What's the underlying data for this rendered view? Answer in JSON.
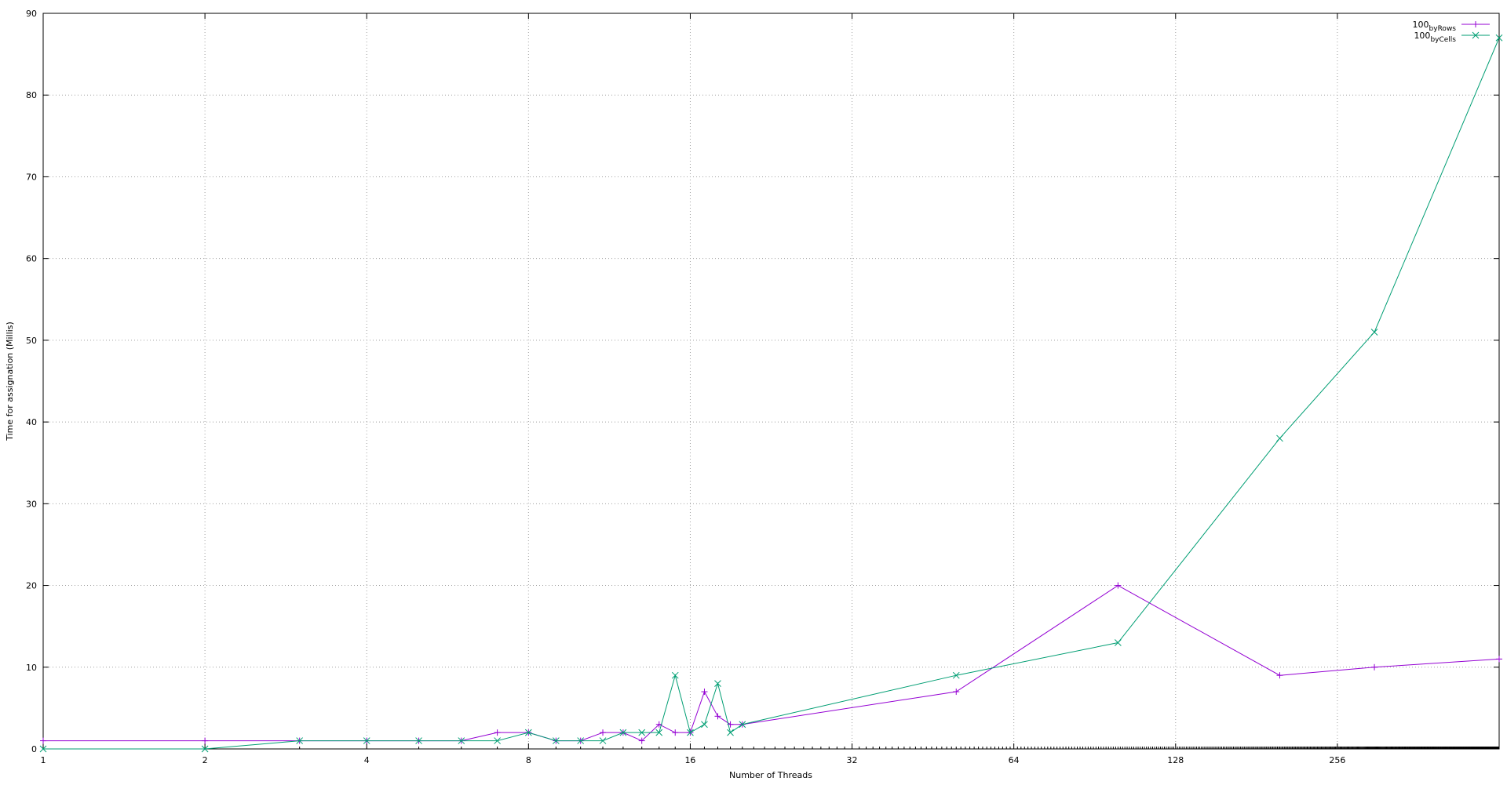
{
  "chart_data": {
    "type": "line",
    "xlabel": "Number of Threads",
    "ylabel": "Time for assignation (Millis)",
    "x_scale": "log2",
    "xlim": [
      1,
      512
    ],
    "ylim": [
      0,
      90
    ],
    "x_ticks": [
      1,
      2,
      4,
      8,
      16,
      32,
      64,
      128,
      256
    ],
    "y_ticks": [
      0,
      10,
      20,
      30,
      40,
      50,
      60,
      70,
      80,
      90
    ],
    "grid": true,
    "legend_position": "top-right",
    "series": [
      {
        "name_main": "100",
        "name_sub": "byRows",
        "color": "#9400d3",
        "marker": "plus",
        "points": [
          [
            1,
            1
          ],
          [
            2,
            1
          ],
          [
            3,
            1
          ],
          [
            4,
            1
          ],
          [
            5,
            1
          ],
          [
            6,
            1
          ],
          [
            7,
            2
          ],
          [
            8,
            2
          ],
          [
            9,
            1
          ],
          [
            10,
            1
          ],
          [
            11,
            2
          ],
          [
            12,
            2
          ],
          [
            13,
            1
          ],
          [
            14,
            3
          ],
          [
            15,
            2
          ],
          [
            16,
            2
          ],
          [
            17,
            7
          ],
          [
            18,
            4
          ],
          [
            19,
            3
          ],
          [
            20,
            3
          ],
          [
            50,
            7
          ],
          [
            100,
            20
          ],
          [
            200,
            9
          ],
          [
            300,
            10
          ],
          [
            512,
            11
          ]
        ]
      },
      {
        "name_main": "100",
        "name_sub": "byCells",
        "color": "#009e73",
        "marker": "cross",
        "points": [
          [
            1,
            0
          ],
          [
            2,
            0
          ],
          [
            3,
            1
          ],
          [
            4,
            1
          ],
          [
            5,
            1
          ],
          [
            6,
            1
          ],
          [
            7,
            1
          ],
          [
            8,
            2
          ],
          [
            9,
            1
          ],
          [
            10,
            1
          ],
          [
            11,
            1
          ],
          [
            12,
            2
          ],
          [
            13,
            2
          ],
          [
            14,
            2
          ],
          [
            15,
            9
          ],
          [
            16,
            2
          ],
          [
            17,
            3
          ],
          [
            18,
            8
          ],
          [
            19,
            2
          ],
          [
            20,
            3
          ],
          [
            50,
            9
          ],
          [
            100,
            13
          ],
          [
            200,
            38
          ],
          [
            300,
            51
          ],
          [
            512,
            87
          ]
        ]
      }
    ]
  }
}
